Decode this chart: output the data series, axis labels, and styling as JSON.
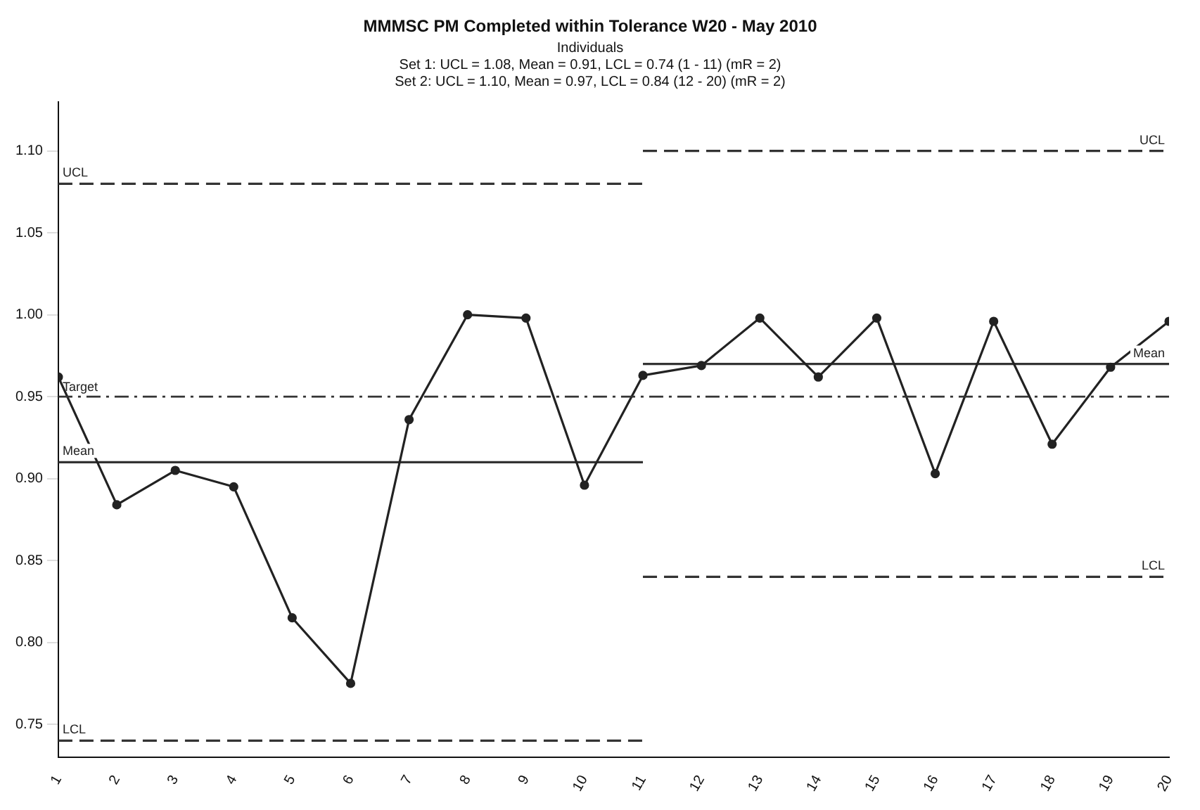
{
  "chart_data": {
    "type": "line",
    "title": "MMMSC PM Completed within Tolerance W20 - May 2010",
    "subtitle": "Individuals\nSet 1: UCL = 1.08, Mean = 0.91, LCL = 0.74 (1 - 11) (mR = 2)\nSet 2: UCL = 1.10, Mean = 0.97, LCL = 0.84 (12 - 20) (mR = 2)",
    "x": [
      1,
      2,
      3,
      4,
      5,
      6,
      7,
      8,
      9,
      10,
      11,
      12,
      13,
      14,
      15,
      16,
      17,
      18,
      19,
      20
    ],
    "series": [
      {
        "type": "line",
        "color": "#222222",
        "marker": "circle",
        "line_style": "solid",
        "values": [
          0.962,
          0.884,
          0.905,
          0.895,
          0.815,
          0.775,
          0.936,
          1.0,
          0.998,
          0.896,
          0.963,
          0.969,
          0.998,
          0.962,
          0.998,
          0.903,
          0.996,
          0.921,
          0.968,
          0.996
        ]
      },
      {
        "type": "line",
        "name": "UCL",
        "color": "#333333",
        "marker": "none",
        "line_style": "dashed",
        "x": [
          1,
          11
        ],
        "values": [
          1.08,
          1.08
        ]
      },
      {
        "type": "line",
        "name": "Mean",
        "color": "#333333",
        "marker": "none",
        "line_style": "solid",
        "x": [
          1,
          11
        ],
        "values": [
          0.91,
          0.91
        ]
      },
      {
        "type": "line",
        "name": "LCL",
        "color": "#333333",
        "marker": "none",
        "line_style": "dashed",
        "x": [
          1,
          11
        ],
        "values": [
          0.74,
          0.74
        ]
      },
      {
        "type": "line",
        "name": "UCL",
        "color": "#333333",
        "marker": "none",
        "line_style": "dashed",
        "x": [
          11,
          20
        ],
        "values": [
          1.1,
          1.1
        ]
      },
      {
        "type": "line",
        "name": "Mean",
        "color": "#333333",
        "marker": "none",
        "line_style": "solid",
        "x": [
          11,
          20
        ],
        "values": [
          0.97,
          0.97
        ]
      },
      {
        "type": "line",
        "name": "LCL",
        "color": "#333333",
        "marker": "none",
        "line_style": "dashed",
        "x": [
          11,
          20
        ],
        "values": [
          0.84,
          0.84
        ]
      }
    ],
    "ref_lines": [
      {
        "axis": "y",
        "value": 0.95,
        "label": "Target",
        "line_style": "dotted",
        "color": "#333333"
      }
    ],
    "xlim": [
      1,
      20
    ],
    "xticks": [
      1,
      2,
      3,
      4,
      5,
      6,
      7,
      8,
      9,
      10,
      11,
      12,
      13,
      14,
      15,
      16,
      17,
      18,
      19,
      20
    ],
    "ylim": [
      0.73,
      1.13
    ],
    "yticks": [
      {
        "value": 0.75,
        "label": "0.75"
      },
      {
        "value": 0.8,
        "label": "0.80"
      },
      {
        "value": 0.85,
        "label": "0.85"
      },
      {
        "value": 0.9,
        "label": "0.90"
      },
      {
        "value": 0.95,
        "label": "0.95"
      },
      {
        "value": 1.0,
        "label": "1.00"
      },
      {
        "value": 1.05,
        "label": "1.05"
      },
      {
        "value": 1.1,
        "label": "1.10"
      }
    ],
    "grid": false,
    "legend": false
  }
}
